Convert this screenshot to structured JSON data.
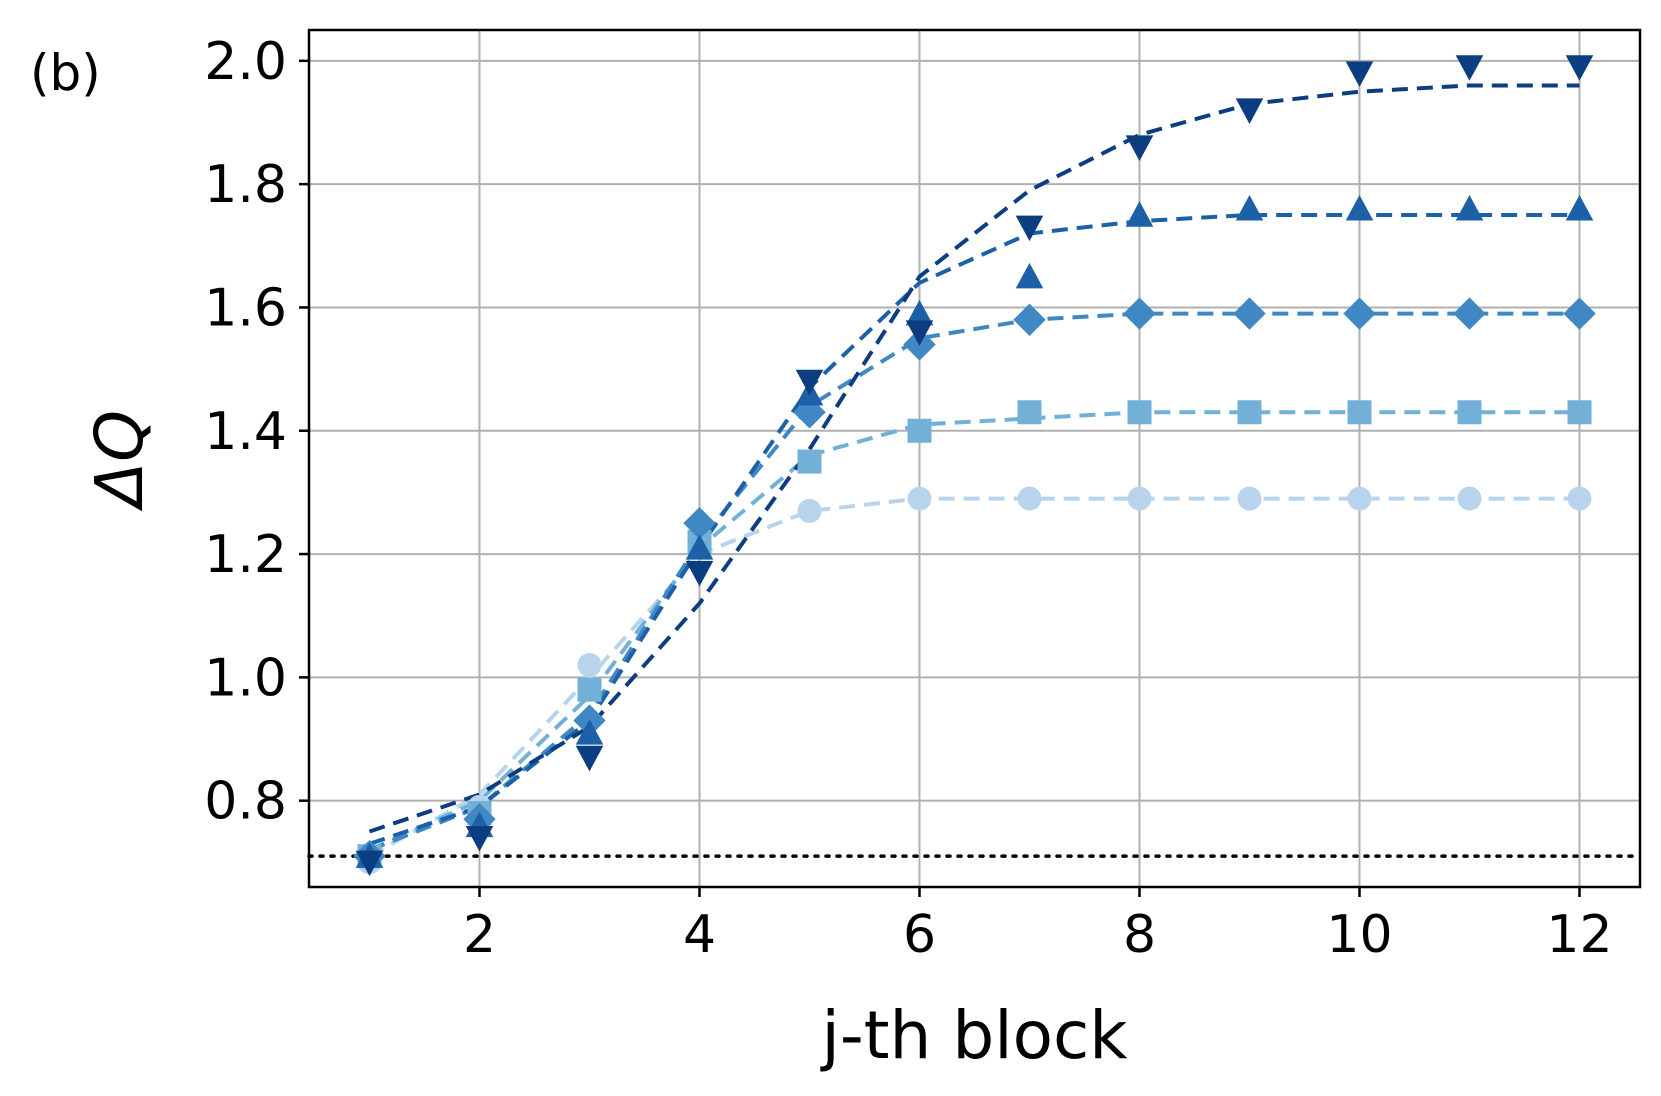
{
  "chart_data": {
    "type": "line",
    "panel_label": "(b)",
    "xlabel": "j-th block",
    "ylabel": "ΔQ",
    "xlim": [
      0.45,
      12.55
    ],
    "ylim": [
      0.66,
      2.05
    ],
    "xticks": [
      2,
      4,
      6,
      8,
      10,
      12
    ],
    "xtick_labels": [
      "2",
      "4",
      "6",
      "8",
      "10",
      "12"
    ],
    "yticks": [
      0.8,
      1.0,
      1.2,
      1.4,
      1.6,
      1.8,
      2.0
    ],
    "ytick_labels": [
      "0.8",
      "1.0",
      "1.2",
      "1.4",
      "1.6",
      "1.8",
      "2.0"
    ],
    "grid": true,
    "reference_line": {
      "y": 0.71,
      "style": "dotted",
      "color": "#000000"
    },
    "x": [
      1,
      2,
      3,
      4,
      5,
      6,
      7,
      8,
      9,
      10,
      11,
      12
    ],
    "series": [
      {
        "marker": "circle",
        "color": "#b8d4ec",
        "markers": [
          0.7,
          0.79,
          1.02,
          1.21,
          1.27,
          1.29,
          1.29,
          1.29,
          1.29,
          1.29,
          1.29,
          1.29
        ],
        "fit": [
          0.71,
          0.81,
          1.0,
          1.2,
          1.27,
          1.29,
          1.29,
          1.29,
          1.29,
          1.29,
          1.29,
          1.29
        ]
      },
      {
        "marker": "square",
        "color": "#72b0d8",
        "markers": [
          0.71,
          0.78,
          0.98,
          1.22,
          1.35,
          1.4,
          1.43,
          1.43,
          1.43,
          1.43,
          1.43,
          1.43
        ],
        "fit": [
          0.72,
          0.8,
          0.97,
          1.21,
          1.36,
          1.41,
          1.42,
          1.43,
          1.43,
          1.43,
          1.43,
          1.43
        ]
      },
      {
        "marker": "diamond",
        "color": "#3f88c4",
        "markers": [
          0.71,
          0.77,
          0.93,
          1.25,
          1.43,
          1.54,
          1.58,
          1.59,
          1.59,
          1.59,
          1.59,
          1.59
        ],
        "fit": [
          0.72,
          0.79,
          0.94,
          1.22,
          1.44,
          1.55,
          1.58,
          1.59,
          1.59,
          1.59,
          1.59,
          1.59
        ]
      },
      {
        "marker": "triangle-up",
        "color": "#1c61a8",
        "markers": [
          0.71,
          0.76,
          0.91,
          1.21,
          1.46,
          1.59,
          1.65,
          1.75,
          1.76,
          1.76,
          1.76,
          1.76
        ],
        "fit": [
          0.73,
          0.79,
          0.93,
          1.21,
          1.47,
          1.64,
          1.72,
          1.74,
          1.75,
          1.75,
          1.75,
          1.75
        ]
      },
      {
        "marker": "triangle-down",
        "color": "#0c3d80",
        "markers": [
          0.7,
          0.74,
          0.87,
          1.17,
          1.48,
          1.56,
          1.73,
          1.86,
          1.92,
          1.98,
          1.99,
          1.99
        ],
        "fit": [
          0.75,
          0.81,
          0.92,
          1.12,
          1.37,
          1.65,
          1.79,
          1.88,
          1.93,
          1.95,
          1.96,
          1.96
        ]
      }
    ]
  }
}
